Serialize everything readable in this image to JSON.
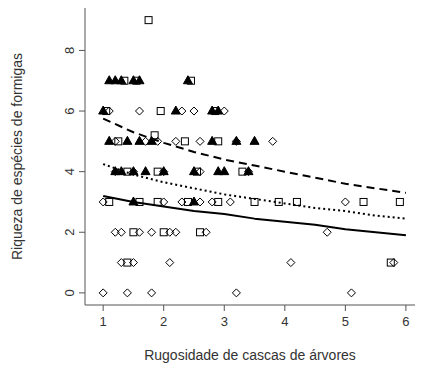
{
  "chart_data": {
    "type": "scatter",
    "x_label": "Rugosidade de cascas de árvores",
    "y_label": "Riqueza de espécies de formigas",
    "xlim": [
      0.7,
      6.15
    ],
    "ylim": [
      -0.4,
      9.4
    ],
    "xticks": [
      1,
      2,
      3,
      4,
      5,
      6
    ],
    "yticks": [
      0,
      2,
      4,
      6,
      8
    ],
    "grid": false,
    "series": [
      {
        "type": "scatter",
        "marker": "triangle-filled",
        "color": "#000000",
        "x": [
          1.1,
          1.2,
          1.3,
          1.5,
          1.6,
          2.4,
          1.0,
          1.1,
          1.4,
          1.6,
          1.8,
          2.2,
          2.8,
          2.9,
          1.2,
          1.3,
          1.5,
          1.7,
          2.0,
          2.5,
          2.8,
          3.2,
          3.5,
          3.0,
          3.4,
          1.5,
          2.5,
          2.9
        ],
        "values": [
          7,
          7,
          7,
          7,
          7,
          7,
          6,
          5,
          5,
          5,
          5,
          6,
          6,
          6,
          4,
          4,
          4,
          4,
          4,
          4,
          5,
          5,
          5,
          4,
          4,
          3,
          3,
          4
        ]
      },
      {
        "type": "scatter",
        "marker": "square",
        "color": "#000000",
        "x": [
          1.75,
          1.05,
          1.55,
          1.35,
          2.45,
          1.95,
          2.85,
          1.85,
          1.25,
          2.35,
          2.9,
          1.4,
          1.9,
          2.55,
          3.3,
          1.1,
          1.6,
          1.9,
          2.4,
          2.9,
          3.5,
          4.2,
          5.3,
          5.9,
          2.0,
          2.6,
          1.5,
          1.4,
          5.75,
          3.9
        ],
        "values": [
          9,
          6,
          7,
          7,
          7,
          6,
          6,
          5.2,
          5,
          5,
          5,
          4,
          4,
          4,
          4,
          3,
          3,
          3,
          3,
          3,
          3,
          3,
          3,
          3,
          2,
          2,
          2,
          1,
          1,
          3
        ]
      },
      {
        "type": "scatter",
        "marker": "diamond",
        "color": "#000000",
        "x": [
          1.0,
          1.4,
          1.8,
          3.2,
          5.1,
          1.3,
          1.5,
          2.1,
          4.1,
          5.8,
          1.2,
          1.3,
          1.6,
          1.8,
          2.1,
          2.2,
          2.7,
          4.7,
          1.0,
          2.0,
          2.3,
          2.6,
          3.1,
          2.8,
          5.0,
          1.2,
          1.5,
          2.0,
          2.6,
          3.4,
          1.2,
          1.7,
          1.9,
          2.2,
          2.6,
          3.2,
          3.8,
          1.1,
          1.6,
          2.3,
          2.5,
          3.0
        ],
        "values": [
          0,
          0,
          0,
          0,
          0,
          1,
          1,
          1,
          1,
          1,
          2,
          2,
          2,
          2,
          2,
          2,
          2,
          2,
          3,
          3,
          3,
          3,
          3,
          3,
          3,
          4,
          4,
          4,
          4,
          4,
          5,
          5,
          5,
          5,
          5,
          5,
          5,
          6,
          6,
          6,
          6,
          6
        ]
      },
      {
        "type": "line",
        "line_style": "dashed",
        "color": "#000000",
        "x": [
          1,
          1.5,
          2,
          2.5,
          3,
          3.5,
          4,
          4.5,
          5,
          5.5,
          6
        ],
        "values": [
          5.75,
          5.3,
          4.95,
          4.65,
          4.4,
          4.2,
          4.0,
          3.8,
          3.6,
          3.45,
          3.3
        ]
      },
      {
        "type": "line",
        "line_style": "dotted",
        "color": "#000000",
        "x": [
          1,
          1.5,
          2,
          2.5,
          3,
          3.5,
          4,
          4.5,
          5,
          5.5,
          6
        ],
        "values": [
          4.25,
          3.9,
          3.65,
          3.45,
          3.25,
          3.1,
          2.95,
          2.8,
          2.7,
          2.55,
          2.45
        ]
      },
      {
        "type": "line",
        "line_style": "solid",
        "color": "#000000",
        "x": [
          1,
          1.5,
          2,
          2.5,
          3,
          3.5,
          4,
          4.5,
          5,
          5.5,
          6
        ],
        "values": [
          3.2,
          3.0,
          2.85,
          2.7,
          2.6,
          2.45,
          2.35,
          2.25,
          2.1,
          2.0,
          1.9
        ]
      }
    ]
  }
}
